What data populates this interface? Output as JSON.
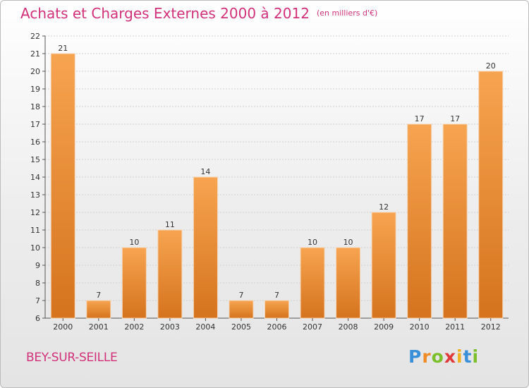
{
  "title": "Achats et Charges Externes 2000 à 2012",
  "subtitle": "(en milliers d'€)",
  "place": "BEY-SUR-SEILLE",
  "logo": {
    "letters": [
      "P",
      "r",
      "o",
      "x",
      "i",
      "t",
      "i"
    ],
    "colors": [
      "#3a8fd9",
      "#f08a24",
      "#7bbf2a",
      "#e03a3a",
      "#f0b020",
      "#3a8fd9",
      "#7bbf2a"
    ]
  },
  "colors": {
    "accent": "#d2317a",
    "bar_top": "#f7a450",
    "bar_bottom": "#d5731e",
    "grid": "#d0d0d0",
    "text": "#333333"
  },
  "chart_data": {
    "type": "bar",
    "categories": [
      "2000",
      "2001",
      "2002",
      "2003",
      "2004",
      "2005",
      "2006",
      "2007",
      "2008",
      "2009",
      "2010",
      "2011",
      "2012"
    ],
    "values": [
      21,
      7,
      10,
      11,
      14,
      7,
      7,
      10,
      10,
      12,
      17,
      17,
      20
    ],
    "title": "Achats et Charges Externes 2000 à 2012",
    "subtitle": "(en milliers d'€)",
    "ylim": [
      6,
      22
    ],
    "yticks": [
      6,
      7,
      8,
      9,
      10,
      11,
      12,
      13,
      14,
      15,
      16,
      17,
      18,
      19,
      20,
      21,
      22
    ],
    "grid": true,
    "data_labels": true
  }
}
